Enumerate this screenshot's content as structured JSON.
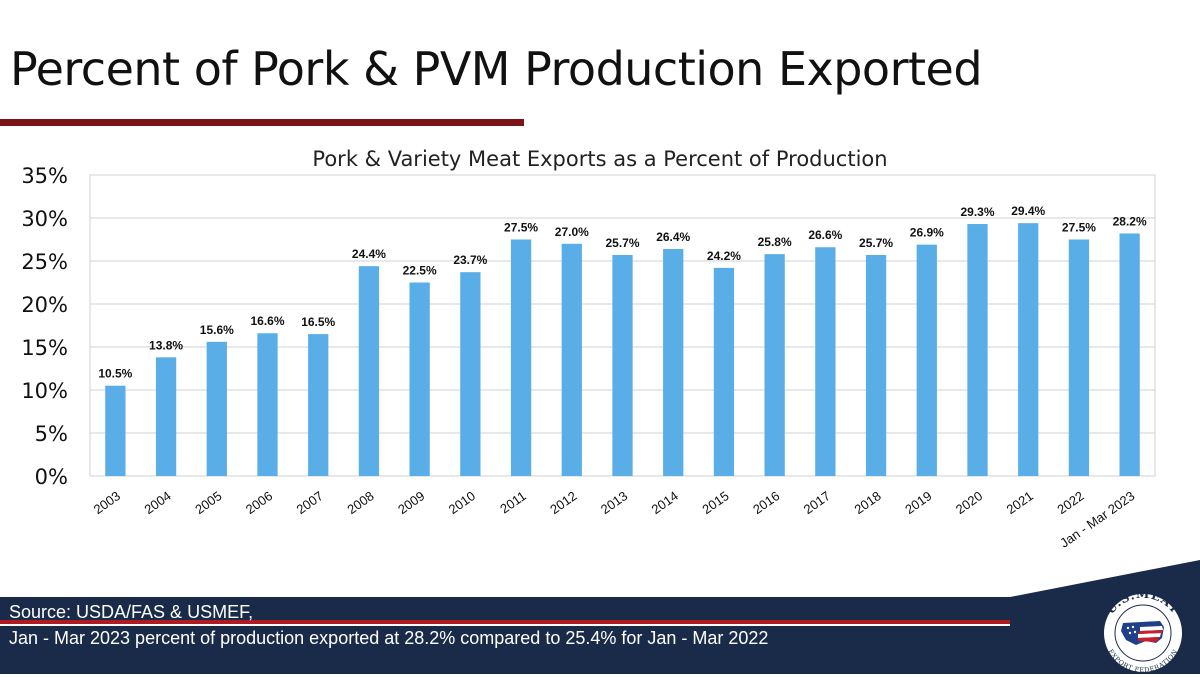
{
  "slide": {
    "title": "Percent of Pork & PVM Production Exported"
  },
  "footer": {
    "source": "Source: USDA/FAS & USMEF,",
    "note": "Jan - Mar 2023 percent of production exported at 28.2% compared to 25.4% for Jan - Mar 2022"
  },
  "logo": {
    "top_text": "U.S.MEAT",
    "bottom_text": "EXPORT FEDERATION"
  },
  "colors": {
    "bar": "#5aaee8",
    "accent": "#7b1418",
    "footer_bg": "#1a2b4a",
    "footer_stripe": "#b01b22"
  },
  "chart_data": {
    "type": "bar",
    "title": "Pork & Variety Meat Exports as a Percent of Production",
    "xlabel": "",
    "ylabel": "",
    "ylim": [
      0,
      35
    ],
    "yticks": [
      0,
      5,
      10,
      15,
      20,
      25,
      30,
      35
    ],
    "ytick_labels": [
      "0%",
      "5%",
      "10%",
      "15%",
      "20%",
      "25%",
      "30%",
      "35%"
    ],
    "grid": true,
    "categories": [
      "2003",
      "2004",
      "2005",
      "2006",
      "2007",
      "2008",
      "2009",
      "2010",
      "2011",
      "2012",
      "2013",
      "2014",
      "2015",
      "2016",
      "2017",
      "2018",
      "2019",
      "2020",
      "2021",
      "2022",
      "Jan - Mar 2023"
    ],
    "values": [
      10.5,
      13.8,
      15.6,
      16.6,
      16.5,
      24.4,
      22.5,
      23.7,
      27.5,
      27.0,
      25.7,
      26.4,
      24.2,
      25.8,
      26.6,
      25.7,
      26.9,
      29.3,
      29.4,
      27.5,
      28.2
    ],
    "data_labels": [
      "10.5%",
      "13.8%",
      "15.6%",
      "16.6%",
      "16.5%",
      "24.4%",
      "22.5%",
      "23.7%",
      "27.5%",
      "27.0%",
      "25.7%",
      "26.4%",
      "24.2%",
      "25.8%",
      "26.6%",
      "25.7%",
      "26.9%",
      "29.3%",
      "29.4%",
      "27.5%",
      "28.2%"
    ]
  }
}
